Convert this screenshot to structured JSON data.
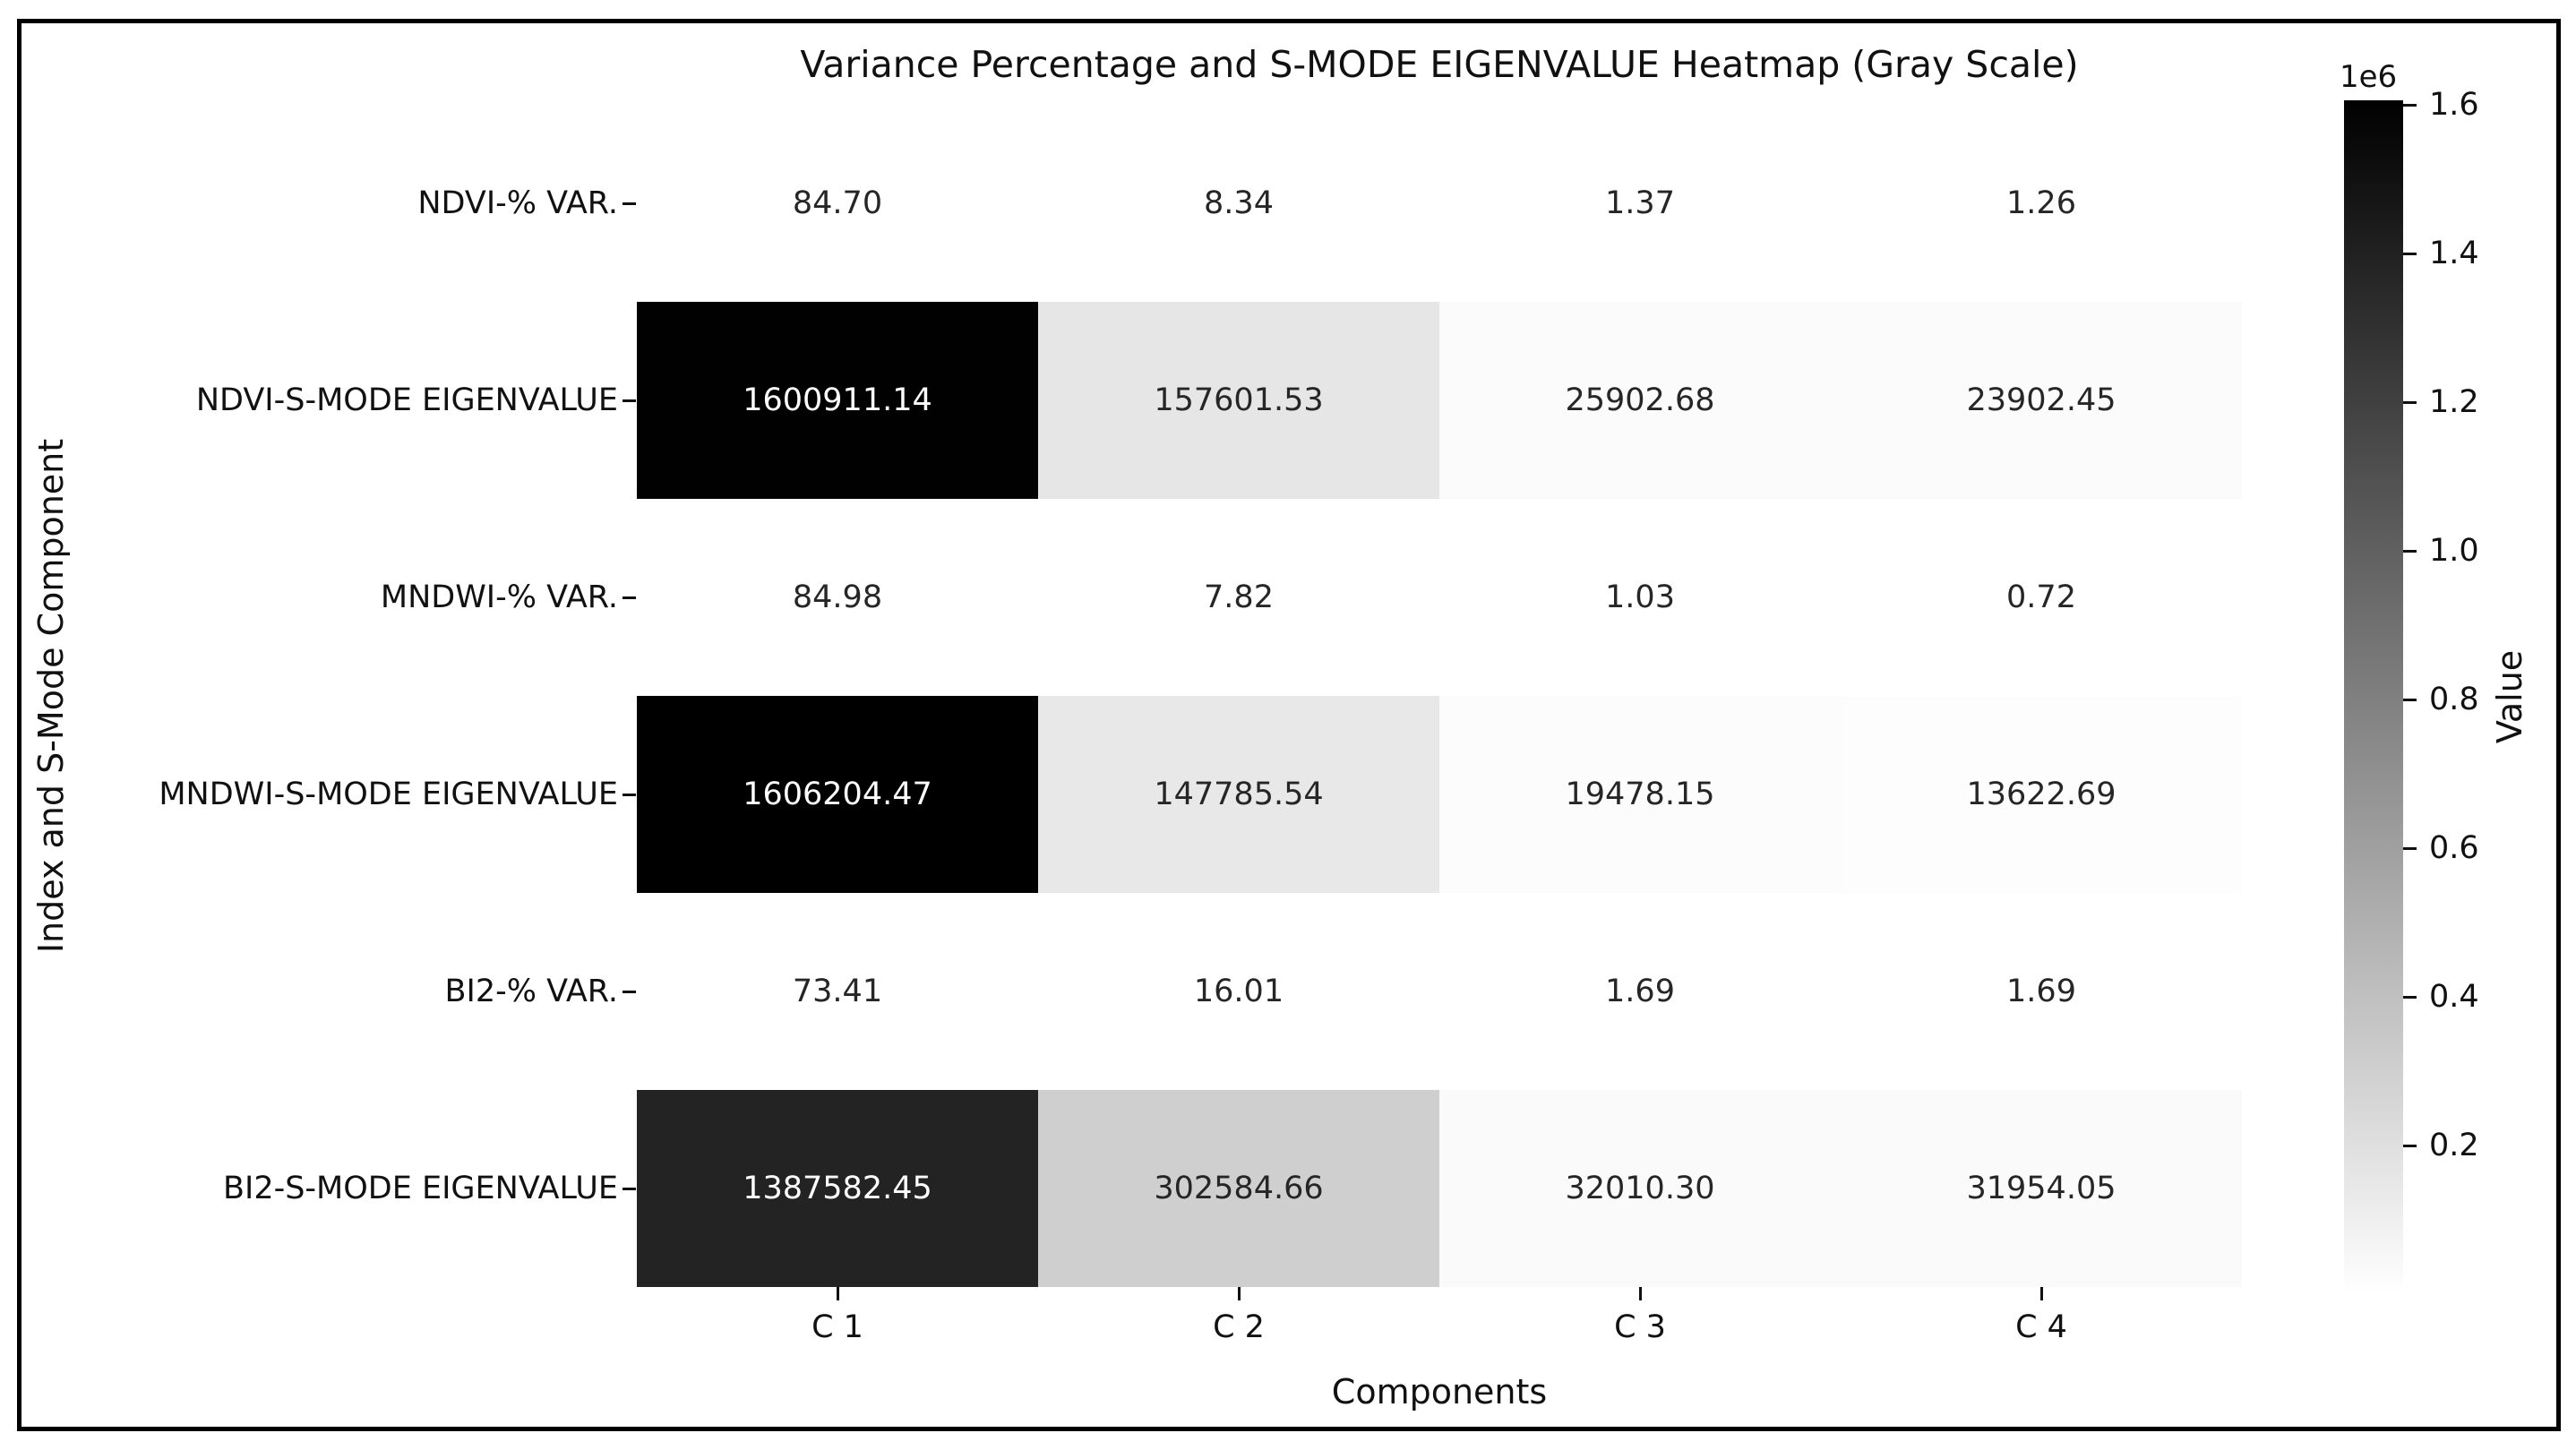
{
  "figure": {
    "title": "Variance Percentage and S-MODE EIGENVALUE Heatmap (Gray Scale)"
  },
  "chart_data": {
    "type": "heatmap",
    "title": "Variance Percentage and S-MODE EIGENVALUE Heatmap (Gray Scale)",
    "xlabel": "Components",
    "ylabel": "Index and S-Mode Component",
    "columns": [
      "C 1",
      "C 2",
      "C 3",
      "C 4"
    ],
    "rows": [
      {
        "label": "NDVI-% VAR.",
        "values": [
          84.7,
          8.34,
          1.37,
          1.26
        ]
      },
      {
        "label": "NDVI-S-MODE EIGENVALUE",
        "values": [
          1600911.14,
          157601.53,
          25902.68,
          23902.45
        ]
      },
      {
        "label": "MNDWI-% VAR.",
        "values": [
          84.98,
          7.82,
          1.03,
          0.72
        ]
      },
      {
        "label": "MNDWI-S-MODE EIGENVALUE",
        "values": [
          1606204.47,
          147785.54,
          19478.15,
          13622.69
        ]
      },
      {
        "label": "BI2-% VAR.",
        "values": [
          73.41,
          16.01,
          1.69,
          1.69
        ]
      },
      {
        "label": "BI2-S-MODE EIGENVALUE",
        "values": [
          1387582.45,
          302584.66,
          32010.3,
          31954.05
        ]
      }
    ],
    "annotation_decimals": 2,
    "grid": false,
    "legend_position": "right-colorbar",
    "colorbar": {
      "label": "Value",
      "scale_note": "1e6",
      "ticks": [
        1.6,
        1.4,
        1.2,
        1.0,
        0.8,
        0.6,
        0.4,
        0.2
      ],
      "tick_scale": 1000000,
      "vmin": 0,
      "vmax": 1606204.47,
      "colormap": "gray_r",
      "color_high": "#000000",
      "color_low": "#ffffff"
    },
    "colors": {
      "background": "#ffffff",
      "frame_border": "#000000",
      "text": "#111111",
      "annotation_dark_text": "#262626",
      "annotation_light_text": "#ffffff"
    }
  }
}
